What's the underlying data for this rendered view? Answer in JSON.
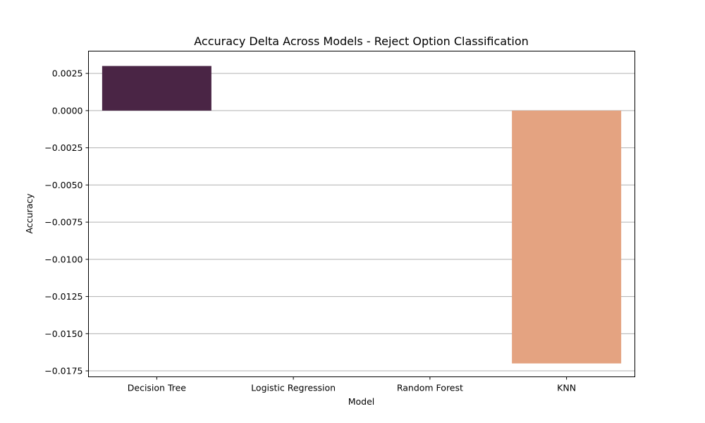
{
  "chart_data": {
    "type": "bar",
    "title": "Accuracy Delta Across Models - Reject Option Classification",
    "xlabel": "Model",
    "ylabel": "Accuracy",
    "categories": [
      "Decision Tree",
      "Logistic Regression",
      "Random Forest",
      "KNN"
    ],
    "values": [
      0.003,
      0.0,
      0.0,
      -0.017
    ],
    "colors": [
      "#4a2545",
      "#a33b54",
      "#d65d48",
      "#e4a381"
    ],
    "ylim": [
      -0.0179,
      0.004
    ],
    "yticks": [
      0.0025,
      0.0,
      -0.0025,
      -0.005,
      -0.0075,
      -0.01,
      -0.0125,
      -0.015,
      -0.0175
    ],
    "ytick_labels": [
      "0.0025",
      "0.0000",
      "−0.0025",
      "−0.0050",
      "−0.0075",
      "−0.0100",
      "−0.0125",
      "−0.0150",
      "−0.0175"
    ],
    "grid": "y",
    "legend": "none"
  }
}
